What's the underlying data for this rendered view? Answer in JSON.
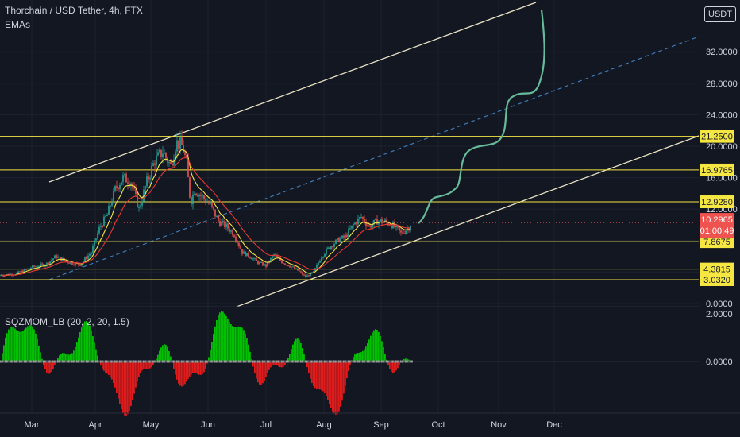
{
  "header": {
    "title": "Thorchain / USD Tether, 4h, FTX",
    "indicator": "EMAs"
  },
  "unit_badge": "USDT",
  "chart_data": {
    "type": "candlestick",
    "x_labels": [
      "Mar",
      "Apr",
      "May",
      "Jun",
      "Jul",
      "Aug",
      "Sep",
      "Oct",
      "Nov",
      "Dec"
    ],
    "y_ticks": [
      "32.0000",
      "28.0000",
      "24.0000",
      "20.0000",
      "16.0000",
      "12.0000",
      "0.0000"
    ],
    "y_range": [
      0,
      36
    ],
    "level_lines": [
      {
        "value": 21.25,
        "label": "21.2500"
      },
      {
        "value": 16.9765,
        "label": "16.9765"
      },
      {
        "value": 12.928,
        "label": "12.9280"
      },
      {
        "value": 7.8675,
        "label": "7.8675"
      },
      {
        "value": 4.3815,
        "label": "4.3815"
      },
      {
        "value": 3.032,
        "label": "3.0320"
      }
    ],
    "last_price": {
      "value": 10.2965,
      "label": "10.2965",
      "countdown": "01:00:49"
    },
    "price_path": [
      [
        0,
        3.6
      ],
      [
        20,
        3.8
      ],
      [
        40,
        4.6
      ],
      [
        60,
        5.1
      ],
      [
        70,
        6.0
      ],
      [
        85,
        5.3
      ],
      [
        100,
        4.9
      ],
      [
        115,
        6.5
      ],
      [
        125,
        9.5
      ],
      [
        135,
        11.3
      ],
      [
        145,
        14.5
      ],
      [
        155,
        16.0
      ],
      [
        165,
        15.5
      ],
      [
        175,
        12.0
      ],
      [
        185,
        15.5
      ],
      [
        195,
        18.2
      ],
      [
        205,
        19.3
      ],
      [
        215,
        17.5
      ],
      [
        222,
        20.5
      ],
      [
        230,
        20.0
      ],
      [
        235,
        17.8
      ],
      [
        240,
        12.8
      ],
      [
        245,
        14.5
      ],
      [
        255,
        13.5
      ],
      [
        265,
        12.5
      ],
      [
        275,
        10.5
      ],
      [
        285,
        9.8
      ],
      [
        295,
        8.8
      ],
      [
        305,
        6.5
      ],
      [
        315,
        6.0
      ],
      [
        325,
        5.2
      ],
      [
        335,
        4.8
      ],
      [
        345,
        6.2
      ],
      [
        355,
        5.3
      ],
      [
        365,
        4.8
      ],
      [
        375,
        4.2
      ],
      [
        385,
        3.4
      ],
      [
        395,
        4.0
      ],
      [
        405,
        6.0
      ],
      [
        415,
        7.2
      ],
      [
        425,
        8.0
      ],
      [
        435,
        8.5
      ],
      [
        445,
        10.0
      ],
      [
        455,
        11.0
      ],
      [
        465,
        9.8
      ],
      [
        475,
        10.5
      ],
      [
        485,
        10.4
      ],
      [
        495,
        9.9
      ],
      [
        505,
        8.9
      ],
      [
        515,
        9.7
      ],
      [
        518,
        10.3
      ]
    ],
    "projection": {
      "color": "#66bb9a"
    },
    "channel_color": "#e8e2c4",
    "level_color": "#f5e642",
    "indicator": {
      "title": "SQZMOM_LB (20, 2, 20, 1.5)",
      "y_ticks": [
        "2.0000",
        "0.0000"
      ],
      "positive_color": "#00c000",
      "negative_color": "#e01b1b"
    }
  }
}
